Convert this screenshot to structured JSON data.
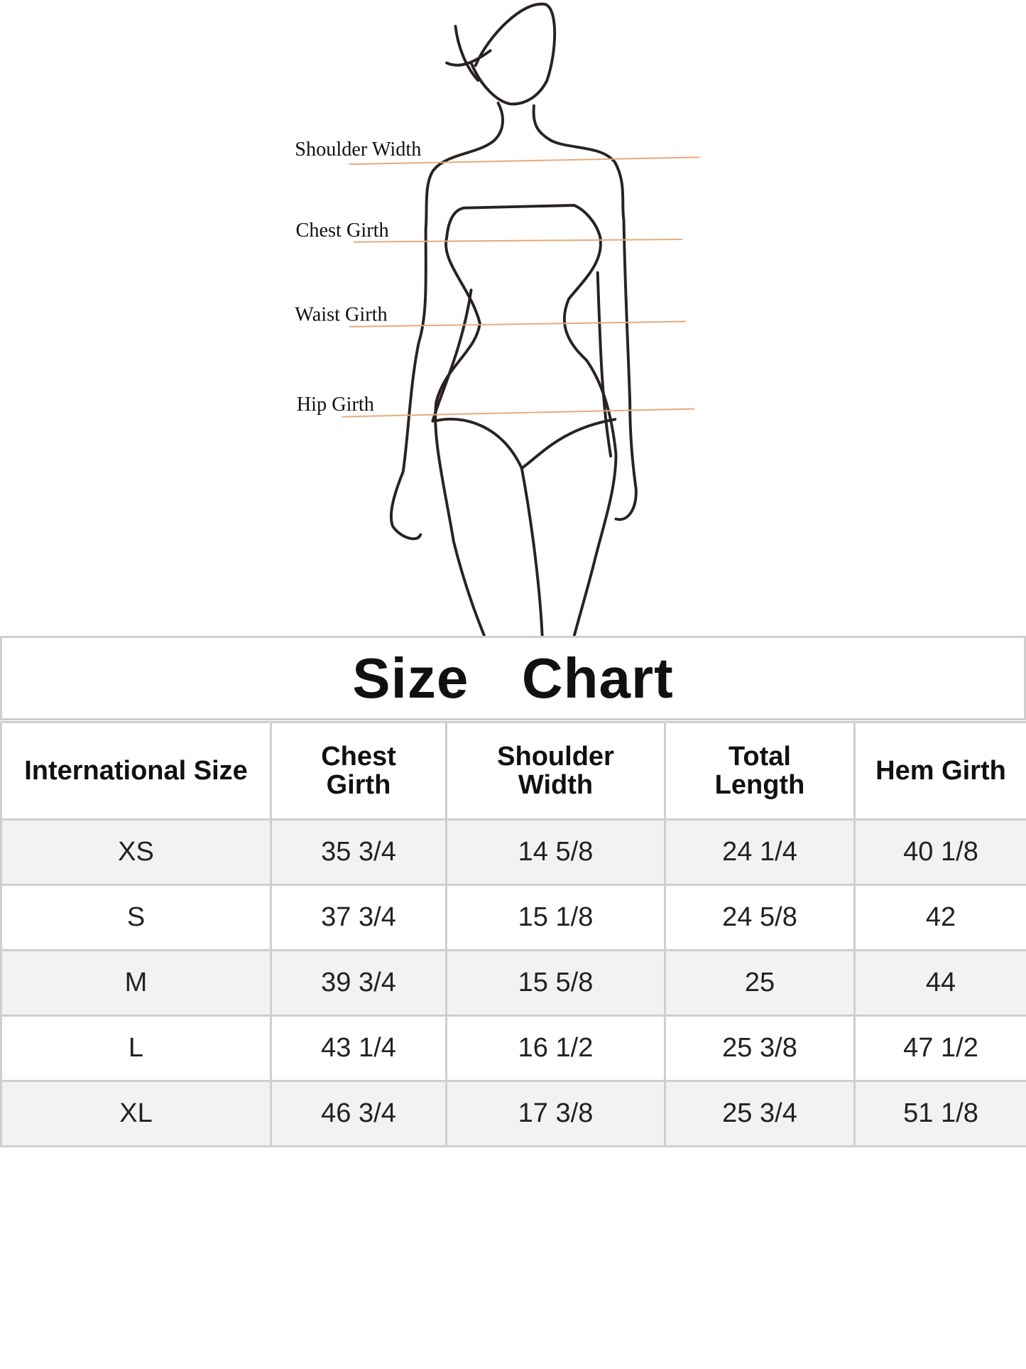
{
  "figure": {
    "labels": [
      "Shoulder Width",
      "Chest Girth",
      "Waist Girth",
      "Hip Girth"
    ],
    "line_color": "#e8a97a"
  },
  "title": "Size  Chart",
  "table": {
    "headers": [
      "International Size",
      "Chest Girth",
      "Shoulder Width",
      "Total Length",
      "Hem Girth"
    ],
    "rows": [
      [
        "XS",
        "35 3/4",
        "14 5/8",
        "24 1/4",
        "40 1/8"
      ],
      [
        "S",
        "37 3/4",
        "15 1/8",
        "24 5/8",
        "42"
      ],
      [
        "M",
        "39 3/4",
        "15 5/8",
        "25",
        "44"
      ],
      [
        "L",
        "43 1/4",
        "16 1/2",
        "25 3/8",
        "47 1/2"
      ],
      [
        "XL",
        "46 3/4",
        "17 3/8",
        "25 3/4",
        "51 1/8"
      ]
    ],
    "alt_row_color": "#f2f2f2",
    "border_color": "#cfcfcf"
  }
}
